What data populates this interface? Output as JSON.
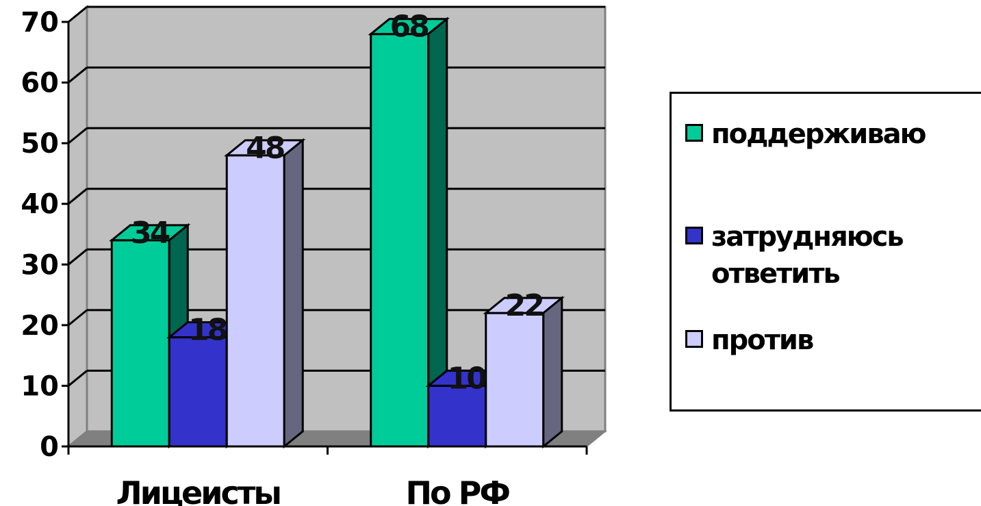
{
  "chart_data": {
    "type": "bar",
    "categories": [
      "Лицеисты",
      "По РФ"
    ],
    "series": [
      {
        "name": "поддерживаю",
        "values": [
          34,
          68
        ],
        "color": "#00cc99",
        "side_color": "#006650"
      },
      {
        "name": "затрудняюсь ответить",
        "values": [
          18,
          10
        ],
        "color": "#3333cc",
        "side_color": "#1a1a66"
      },
      {
        "name": "против",
        "values": [
          48,
          22
        ],
        "color": "#ccccff",
        "side_color": "#666680"
      }
    ],
    "y_ticks": [
      "0",
      "10",
      "20",
      "30",
      "40",
      "50",
      "60",
      "70"
    ],
    "ylim": [
      0,
      70
    ],
    "grid": true,
    "legend": "right",
    "wall_color": "#c0c0c0",
    "floor_color": "#808080"
  }
}
